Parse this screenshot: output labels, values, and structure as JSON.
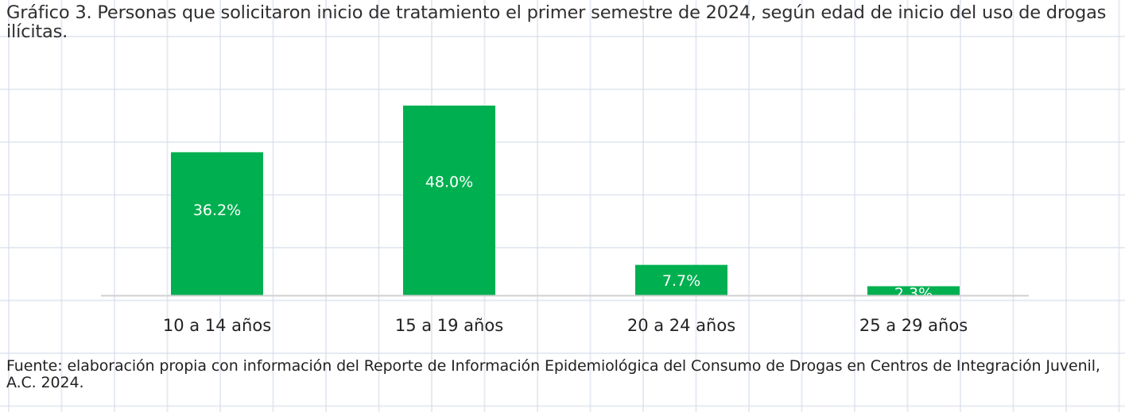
{
  "title": "Gráfico 3. Personas que solicitaron inicio de tratamiento el primer semestre de 2024, según edad de inicio del uso de drogas ilícitas.",
  "source": "Fuente: elaboración propia con información del Reporte de Información Epidemiológica del Consumo de Drogas en Centros de Integración Juvenil, A.C. 2024.",
  "colors": {
    "bar": "#00b050",
    "label": "#ffffff",
    "axis": "#d0d0d0",
    "tick": "#222222"
  },
  "chart_data": {
    "type": "bar",
    "categories": [
      "10 a 14 años",
      "15 a 19 años",
      "20 a 24 años",
      "25 a 29 años"
    ],
    "values": [
      36.2,
      48.0,
      7.7,
      2.3
    ],
    "data_labels": [
      "36.2%",
      "48.0%",
      "7.7%",
      "2.3%"
    ],
    "unit": "%",
    "ylim": [
      0,
      50
    ],
    "xlabel": "",
    "ylabel": "",
    "grid": false,
    "legend": "none"
  }
}
